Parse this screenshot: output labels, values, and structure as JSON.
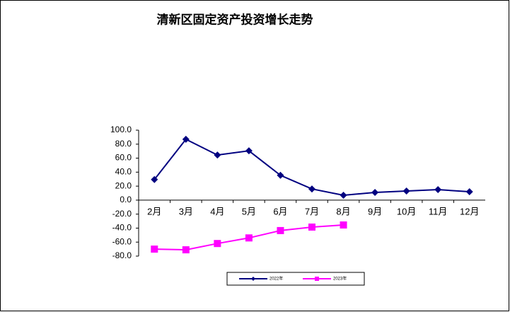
{
  "chart_data": {
    "type": "line",
    "title": "清新区固定资产投资增长走势",
    "categories": [
      "2月",
      "3月",
      "4月",
      "5月",
      "6月",
      "7月",
      "8月",
      "9月",
      "10月",
      "11月",
      "12月"
    ],
    "series": [
      {
        "name": "2022年",
        "color": "#000080",
        "marker": "diamond",
        "values": [
          29.5,
          87,
          64.5,
          70.5,
          35.5,
          16,
          7,
          11,
          13,
          15,
          12
        ]
      },
      {
        "name": "2023年",
        "color": "#ff00ff",
        "marker": "square",
        "values": [
          -70,
          -71,
          -62,
          -54,
          -43.5,
          -38.5,
          -35.5,
          null,
          null,
          null,
          null
        ]
      }
    ],
    "ylim": [
      -80,
      100
    ],
    "yticks": [
      {
        "value": 100,
        "label": "100.0"
      },
      {
        "value": 80,
        "label": "80.0"
      },
      {
        "value": 60,
        "label": "60.0"
      },
      {
        "value": 40,
        "label": "40.0"
      },
      {
        "value": 20,
        "label": "20.0"
      },
      {
        "value": 0,
        "label": "0.0"
      },
      {
        "value": -20,
        "label": "-20.0"
      },
      {
        "value": -40,
        "label": "-40.0"
      },
      {
        "value": -60,
        "label": "-60.0"
      },
      {
        "value": -80,
        "label": "-80.0"
      }
    ],
    "legend": "bottom"
  }
}
